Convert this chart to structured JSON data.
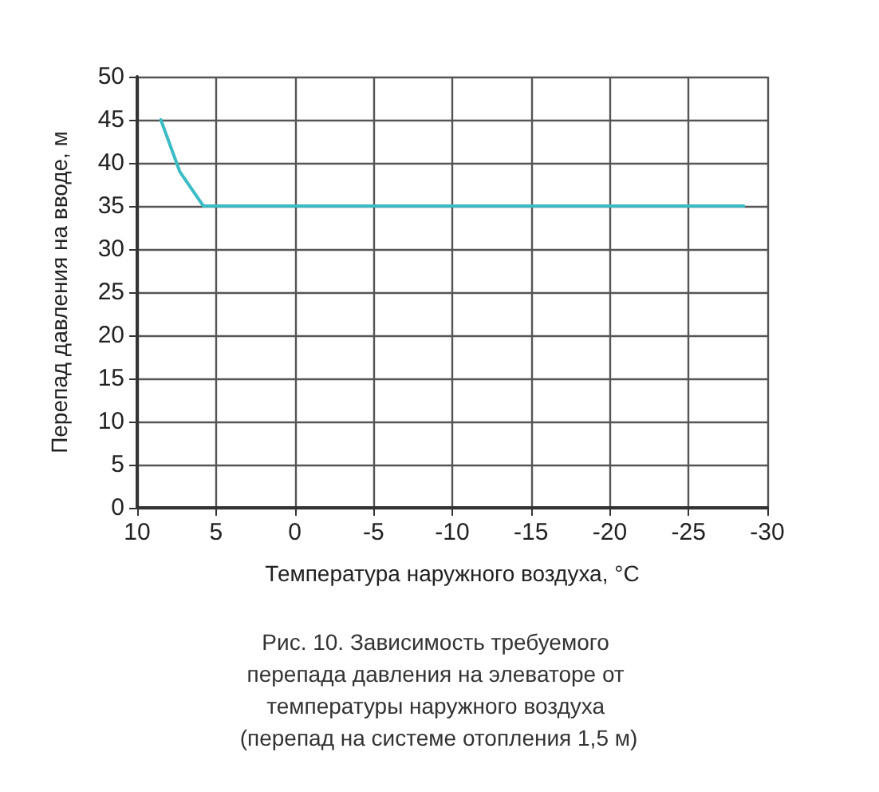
{
  "chart_data": {
    "type": "line",
    "xlabel": "Температура наружного воздуха, °С",
    "ylabel": "Перепад давления на вводе, м",
    "annotations": [
      "Рис. 10. Зависимость требуемого перепада давления на элеваторе от температуры наружного воздуха (перепад на системе отопления 1,5 м)"
    ],
    "series": [
      {
        "color": "#3bbcc4",
        "x": [
          8.5,
          7.3,
          5.8,
          -28.5
        ],
        "values": [
          45,
          39,
          35,
          35
        ]
      }
    ],
    "xlim": [
      10,
      -30
    ],
    "xticks": [
      10,
      5,
      0,
      -5,
      -10,
      -15,
      -20,
      -25,
      -30
    ],
    "ylim": [
      0,
      50
    ],
    "yticks": [
      0,
      5,
      10,
      15,
      20,
      25,
      30,
      35,
      40,
      45,
      50
    ],
    "grid": true,
    "marker": "none",
    "line_style": "solid"
  }
}
